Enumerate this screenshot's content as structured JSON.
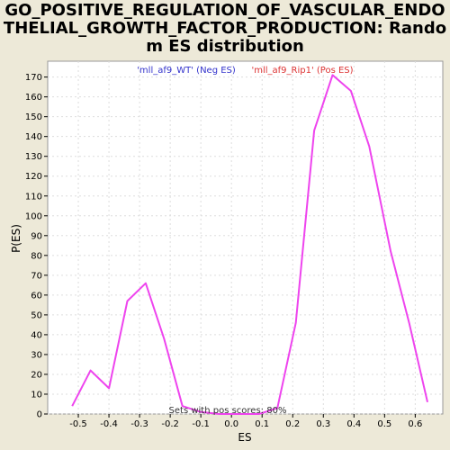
{
  "chart_data": {
    "type": "line",
    "title_lines": [
      "GO_POSITIVE_REGULATION_OF_VASCULAR_ENDO",
      "THELIAL_GROWTH_FACTOR_PRODUCTION: Rando",
      "m ES distribution"
    ],
    "xlabel": "ES",
    "ylabel": "P(ES)",
    "xlim": [
      -0.6,
      0.69
    ],
    "ylim": [
      0,
      178
    ],
    "xticks": [
      -0.5,
      -0.4,
      -0.3,
      -0.2,
      -0.1,
      0.0,
      0.1,
      0.2,
      0.3,
      0.4,
      0.5,
      0.6
    ],
    "xtick_labels": [
      "-0.5",
      "-0.4",
      "-0.3",
      "-0.2",
      "-0.1",
      "0.0",
      "0.1",
      "0.2",
      "0.3",
      "0.4",
      "0.5",
      "0.6"
    ],
    "yticks": [
      0,
      10,
      20,
      30,
      40,
      50,
      60,
      70,
      80,
      90,
      100,
      110,
      120,
      130,
      140,
      150,
      160,
      170
    ],
    "ytick_labels": [
      "0",
      "10",
      "20",
      "30",
      "40",
      "50",
      "60",
      "70",
      "80",
      "90",
      "100",
      "110",
      "120",
      "130",
      "140",
      "150",
      "160",
      "170"
    ],
    "grid": true,
    "legend": [
      {
        "label": "'mll_af9_WT' (Neg ES)",
        "color": "#3333cc"
      },
      {
        "label": "'mll_af9_Rip1' (Pos ES)",
        "color": "#dd3333"
      }
    ],
    "annotation": "Sets with pos scores: 80%",
    "series": [
      {
        "color": "#ee44ee",
        "x": [
          -0.52,
          -0.46,
          -0.4,
          -0.34,
          -0.28,
          -0.22,
          -0.16,
          -0.1,
          -0.04,
          0.02,
          0.09,
          0.15,
          0.21,
          0.27,
          0.33,
          0.39,
          0.45,
          0.52,
          0.58,
          0.64
        ],
        "y": [
          4,
          22,
          13,
          57,
          66,
          38,
          4,
          1,
          0,
          0,
          0,
          3,
          46,
          143,
          171,
          163,
          135,
          82,
          46,
          6
        ]
      }
    ]
  }
}
